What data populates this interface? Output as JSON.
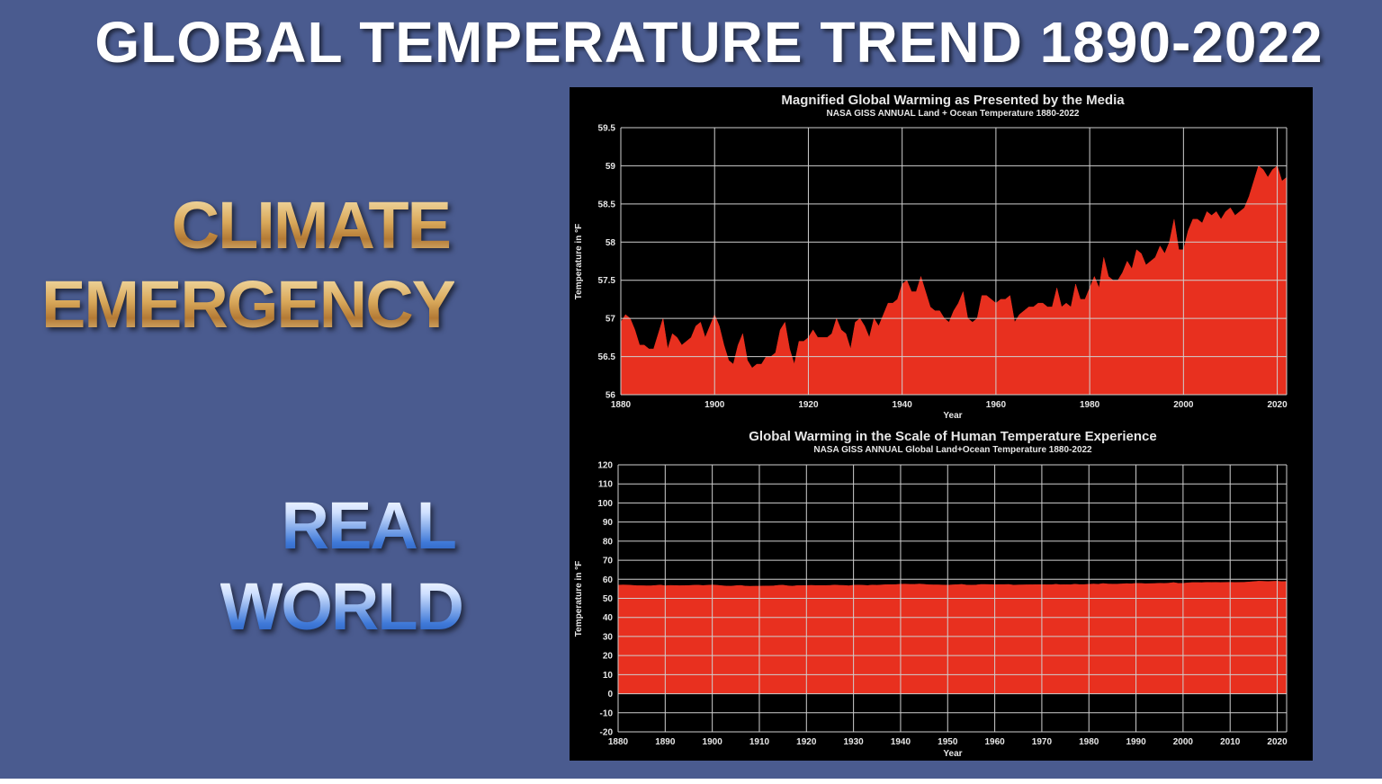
{
  "slide": {
    "title": "GLOBAL TEMPERATURE TREND 1890-2022",
    "climate_label": [
      "CLIMATE",
      "EMERGENCY"
    ],
    "real_label": [
      "REAL",
      "WORLD"
    ],
    "background_color": "#4a5b8f",
    "fill_color": "#e8301f"
  },
  "chart_data": [
    {
      "type": "area",
      "title": "Magnified Global Warming as Presented by the Media",
      "subtitle": "NASA GISS ANNUAL Land + Ocean Temperature 1880-2022",
      "xlabel": "Year",
      "ylabel": "Temperature in °F",
      "xlim": [
        1880,
        2022
      ],
      "ylim": [
        56,
        59.5
      ],
      "xticks": [
        1880,
        1900,
        1920,
        1940,
        1960,
        1980,
        2000,
        2020
      ],
      "yticks": [
        56,
        56.5,
        57,
        57.5,
        58,
        58.5,
        59,
        59.5
      ],
      "ytick_labels": [
        "56",
        "56.5",
        "57",
        "57.5",
        "58",
        "58.5",
        "59",
        "59.5"
      ],
      "grid": true,
      "x": [
        1880,
        1881,
        1882,
        1883,
        1884,
        1885,
        1886,
        1887,
        1888,
        1889,
        1890,
        1891,
        1892,
        1893,
        1894,
        1895,
        1896,
        1897,
        1898,
        1899,
        1900,
        1901,
        1902,
        1903,
        1904,
        1905,
        1906,
        1907,
        1908,
        1909,
        1910,
        1911,
        1912,
        1913,
        1914,
        1915,
        1916,
        1917,
        1918,
        1919,
        1920,
        1921,
        1922,
        1923,
        1924,
        1925,
        1926,
        1927,
        1928,
        1929,
        1930,
        1931,
        1932,
        1933,
        1934,
        1935,
        1936,
        1937,
        1938,
        1939,
        1940,
        1941,
        1942,
        1943,
        1944,
        1945,
        1946,
        1947,
        1948,
        1949,
        1950,
        1951,
        1952,
        1953,
        1954,
        1955,
        1956,
        1957,
        1958,
        1959,
        1960,
        1961,
        1962,
        1963,
        1964,
        1965,
        1966,
        1967,
        1968,
        1969,
        1970,
        1971,
        1972,
        1973,
        1974,
        1975,
        1976,
        1977,
        1978,
        1979,
        1980,
        1981,
        1982,
        1983,
        1984,
        1985,
        1986,
        1987,
        1988,
        1989,
        1990,
        1991,
        1992,
        1993,
        1994,
        1995,
        1996,
        1997,
        1998,
        1999,
        2000,
        2001,
        2002,
        2003,
        2004,
        2005,
        2006,
        2007,
        2008,
        2009,
        2010,
        2011,
        2012,
        2013,
        2014,
        2015,
        2016,
        2017,
        2018,
        2019,
        2020,
        2021,
        2022
      ],
      "y": [
        56.95,
        57.05,
        57.0,
        56.85,
        56.65,
        56.65,
        56.6,
        56.6,
        56.8,
        57.0,
        56.6,
        56.8,
        56.75,
        56.65,
        56.7,
        56.75,
        56.9,
        56.95,
        56.75,
        56.9,
        57.05,
        56.9,
        56.65,
        56.45,
        56.4,
        56.65,
        56.8,
        56.45,
        56.35,
        56.4,
        56.4,
        56.5,
        56.5,
        56.55,
        56.85,
        56.95,
        56.6,
        56.4,
        56.7,
        56.7,
        56.75,
        56.85,
        56.75,
        56.75,
        56.75,
        56.8,
        57.0,
        56.85,
        56.8,
        56.6,
        56.95,
        57.0,
        56.9,
        56.75,
        57.0,
        56.9,
        57.05,
        57.2,
        57.2,
        57.25,
        57.45,
        57.5,
        57.35,
        57.35,
        57.55,
        57.35,
        57.15,
        57.1,
        57.1,
        57.0,
        56.95,
        57.1,
        57.2,
        57.35,
        57.0,
        56.95,
        57.0,
        57.3,
        57.3,
        57.25,
        57.2,
        57.25,
        57.25,
        57.3,
        56.95,
        57.05,
        57.1,
        57.15,
        57.15,
        57.2,
        57.2,
        57.15,
        57.15,
        57.4,
        57.15,
        57.2,
        57.15,
        57.45,
        57.25,
        57.25,
        57.4,
        57.55,
        57.4,
        57.8,
        57.55,
        57.5,
        57.5,
        57.6,
        57.75,
        57.65,
        57.9,
        57.85,
        57.7,
        57.75,
        57.8,
        57.95,
        57.85,
        58.0,
        58.3,
        57.9,
        57.9,
        58.15,
        58.3,
        58.3,
        58.25,
        58.4,
        58.35,
        58.4,
        58.3,
        58.4,
        58.45,
        58.35,
        58.4,
        58.45,
        58.6,
        58.8,
        59.0,
        58.95,
        58.85,
        58.95,
        59.0,
        58.8,
        58.85
      ]
    },
    {
      "type": "area",
      "title": "Global Warming in the Scale of Human Temperature Experience",
      "subtitle": "NASA GISS ANNUAL Global Land+Ocean Temperature 1880-2022",
      "xlabel": "Year",
      "ylabel": "Temperature in °F",
      "xlim": [
        1880,
        2022
      ],
      "ylim": [
        -20,
        120
      ],
      "xticks": [
        1880,
        1890,
        1900,
        1910,
        1920,
        1930,
        1940,
        1950,
        1960,
        1970,
        1980,
        1990,
        2000,
        2010,
        2020
      ],
      "yticks": [
        -20,
        -10,
        0,
        10,
        20,
        30,
        40,
        50,
        60,
        70,
        80,
        90,
        100,
        110,
        120
      ],
      "grid": true,
      "fill_from": 0,
      "uses_same_series_as_chart": 1
    }
  ]
}
